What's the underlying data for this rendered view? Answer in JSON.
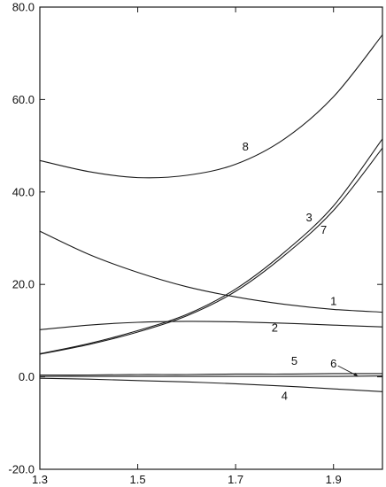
{
  "chart_data": {
    "type": "line",
    "title": "",
    "xlabel": "",
    "ylabel": "",
    "xlim": [
      1.3,
      2.0
    ],
    "ylim": [
      -20.0,
      80.0
    ],
    "grid": false,
    "legend": "none (curves labeled inline)",
    "x_ticks": [
      1.3,
      1.5,
      1.7,
      1.9
    ],
    "x_tick_labels": [
      "1.3",
      "1.5",
      "1.7",
      "1.9"
    ],
    "y_ticks": [
      -20.0,
      0.0,
      20.0,
      40.0,
      60.0,
      80.0
    ],
    "y_tick_labels": [
      "-20.0",
      "0.0",
      "20.0",
      "40.0",
      "60.0",
      "80.0"
    ],
    "x": [
      1.3,
      1.4,
      1.5,
      1.6,
      1.7,
      1.8,
      1.9,
      2.0
    ],
    "series": [
      {
        "name": "1",
        "values": [
          31.5,
          26.5,
          22.6,
          19.5,
          17.3,
          15.7,
          14.6,
          14.0
        ]
      },
      {
        "name": "2",
        "values": [
          10.2,
          11.2,
          11.8,
          12.0,
          11.9,
          11.6,
          11.2,
          10.8
        ]
      },
      {
        "name": "3",
        "values": [
          5.0,
          7.2,
          10.0,
          13.5,
          19.0,
          27.0,
          37.0,
          51.5
        ]
      },
      {
        "name": "4",
        "values": [
          -0.3,
          -0.5,
          -0.8,
          -1.1,
          -1.5,
          -2.0,
          -2.6,
          -3.2
        ]
      },
      {
        "name": "5",
        "values": [
          0.4,
          0.4,
          0.5,
          0.5,
          0.6,
          0.6,
          0.7,
          0.7
        ]
      },
      {
        "name": "6",
        "values": [
          0.1,
          0.1,
          0.1,
          0.1,
          0.1,
          0.1,
          0.1,
          0.2
        ]
      },
      {
        "name": "7",
        "values": [
          4.9,
          7.0,
          9.7,
          13.2,
          18.5,
          26.3,
          36.0,
          49.5
        ]
      },
      {
        "name": "8",
        "values": [
          46.8,
          44.4,
          43.1,
          43.6,
          46.0,
          51.5,
          60.6,
          74.0
        ]
      }
    ],
    "curve_labels": [
      {
        "text": "8",
        "x": 1.72,
        "y": 49.0
      },
      {
        "text": "3",
        "x": 1.85,
        "y": 33.6
      },
      {
        "text": "7",
        "x": 1.88,
        "y": 31.0
      },
      {
        "text": "1",
        "x": 1.9,
        "y": 15.5
      },
      {
        "text": "2",
        "x": 1.78,
        "y": 9.8
      },
      {
        "text": "5",
        "x": 1.82,
        "y": 2.6
      },
      {
        "text": "6",
        "x": 1.9,
        "y": 2.0
      },
      {
        "text": "4",
        "x": 1.8,
        "y": -5.0
      }
    ]
  }
}
